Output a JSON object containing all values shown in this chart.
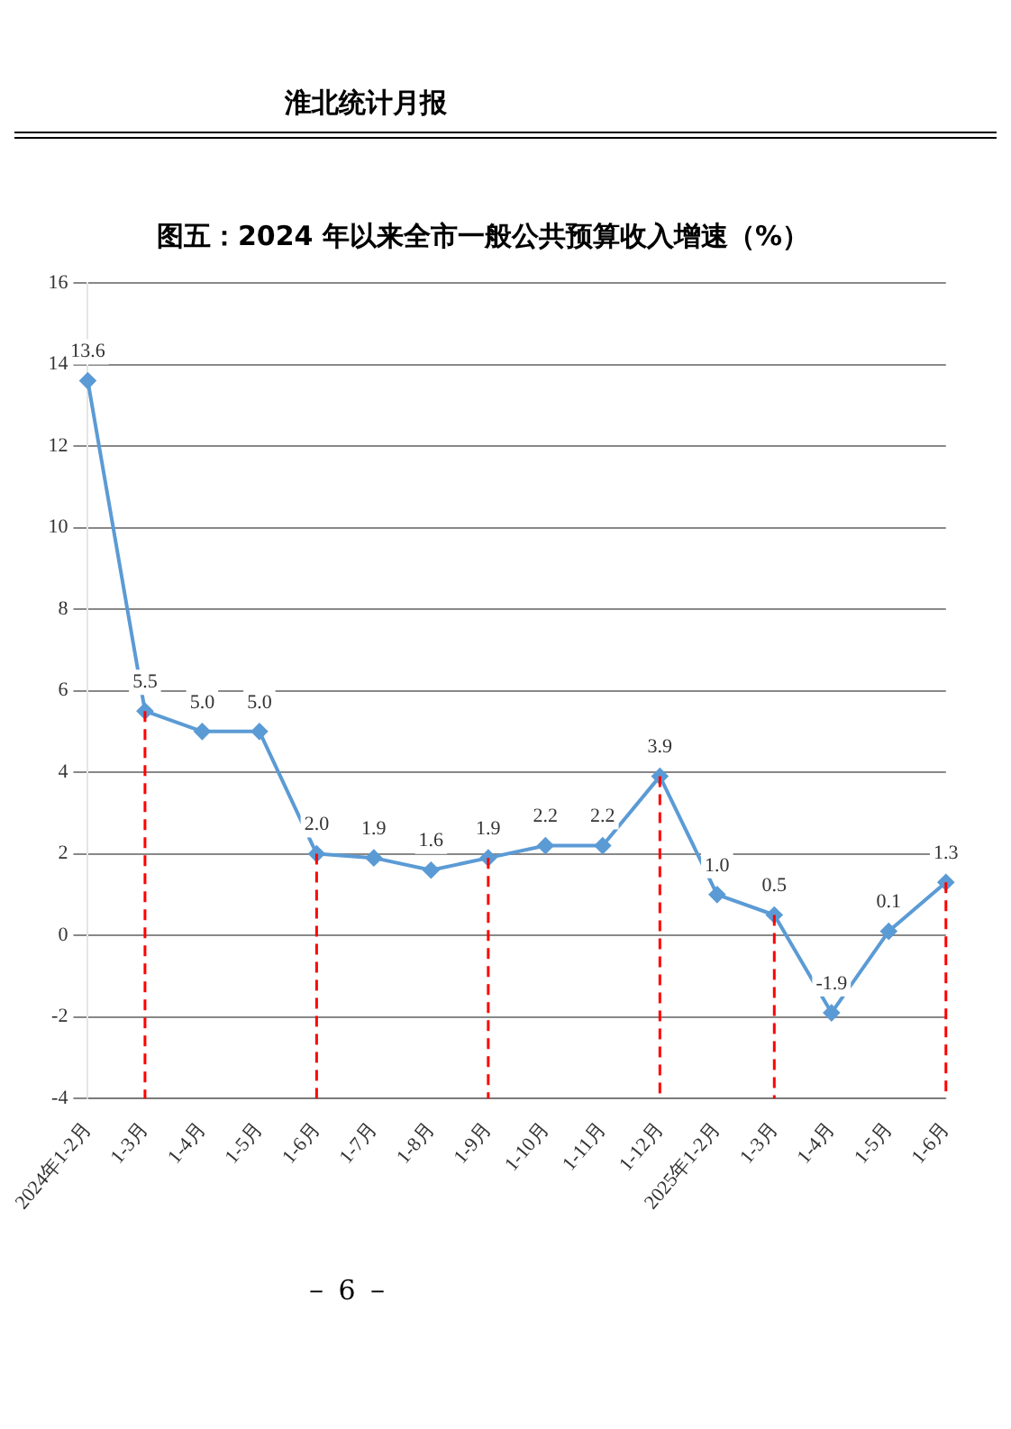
{
  "chart_data": {
    "type": "line",
    "title": "图五：2024 年以来全市一般公共预算收入增速（%）",
    "categories": [
      "2024年1-2月",
      "1-3月",
      "1-4月",
      "1-5月",
      "1-6月",
      "1-7月",
      "1-8月",
      "1-9月",
      "1-10月",
      "1-11月",
      "1-12月",
      "2025年1-2月",
      "1-3月",
      "1-4月",
      "1-5月",
      "1-6月"
    ],
    "series": [
      {
        "color": "#5b9bd5",
        "values": [
          13.6,
          5.5,
          5.0,
          5.0,
          2.0,
          1.9,
          1.6,
          1.9,
          2.2,
          2.2,
          3.9,
          1.0,
          0.5,
          -1.9,
          0.1,
          1.3
        ],
        "value_labels": [
          "13.6",
          "5.5",
          "5.0",
          "5.0",
          "2.0",
          "1.9",
          "1.6",
          "1.9",
          "2.2",
          "2.2",
          "3.9",
          "1.0",
          "0.5",
          "-1.9",
          "0.1",
          "1.3"
        ]
      }
    ],
    "ylim": [
      -4,
      16
    ],
    "yticks": [
      -4,
      -2,
      0,
      2,
      4,
      6,
      8,
      10,
      12,
      14,
      16
    ],
    "grid": "y",
    "legend": false,
    "marker": "diamond",
    "line_style": "solid",
    "ref_lines": [
      {
        "axis": "x",
        "value": "1-3月",
        "color": "#ff0000",
        "line_style": "dashed"
      },
      {
        "axis": "x",
        "value": "1-6月",
        "color": "#ff0000",
        "line_style": "dashed"
      },
      {
        "axis": "x",
        "value": "1-9月",
        "color": "#ff0000",
        "line_style": "dashed"
      },
      {
        "axis": "x",
        "value": "1-12月",
        "color": "#ff0000",
        "line_style": "dashed"
      }
    ],
    "annotations": [
      "淮北统计月报",
      "－ 6 －"
    ]
  }
}
